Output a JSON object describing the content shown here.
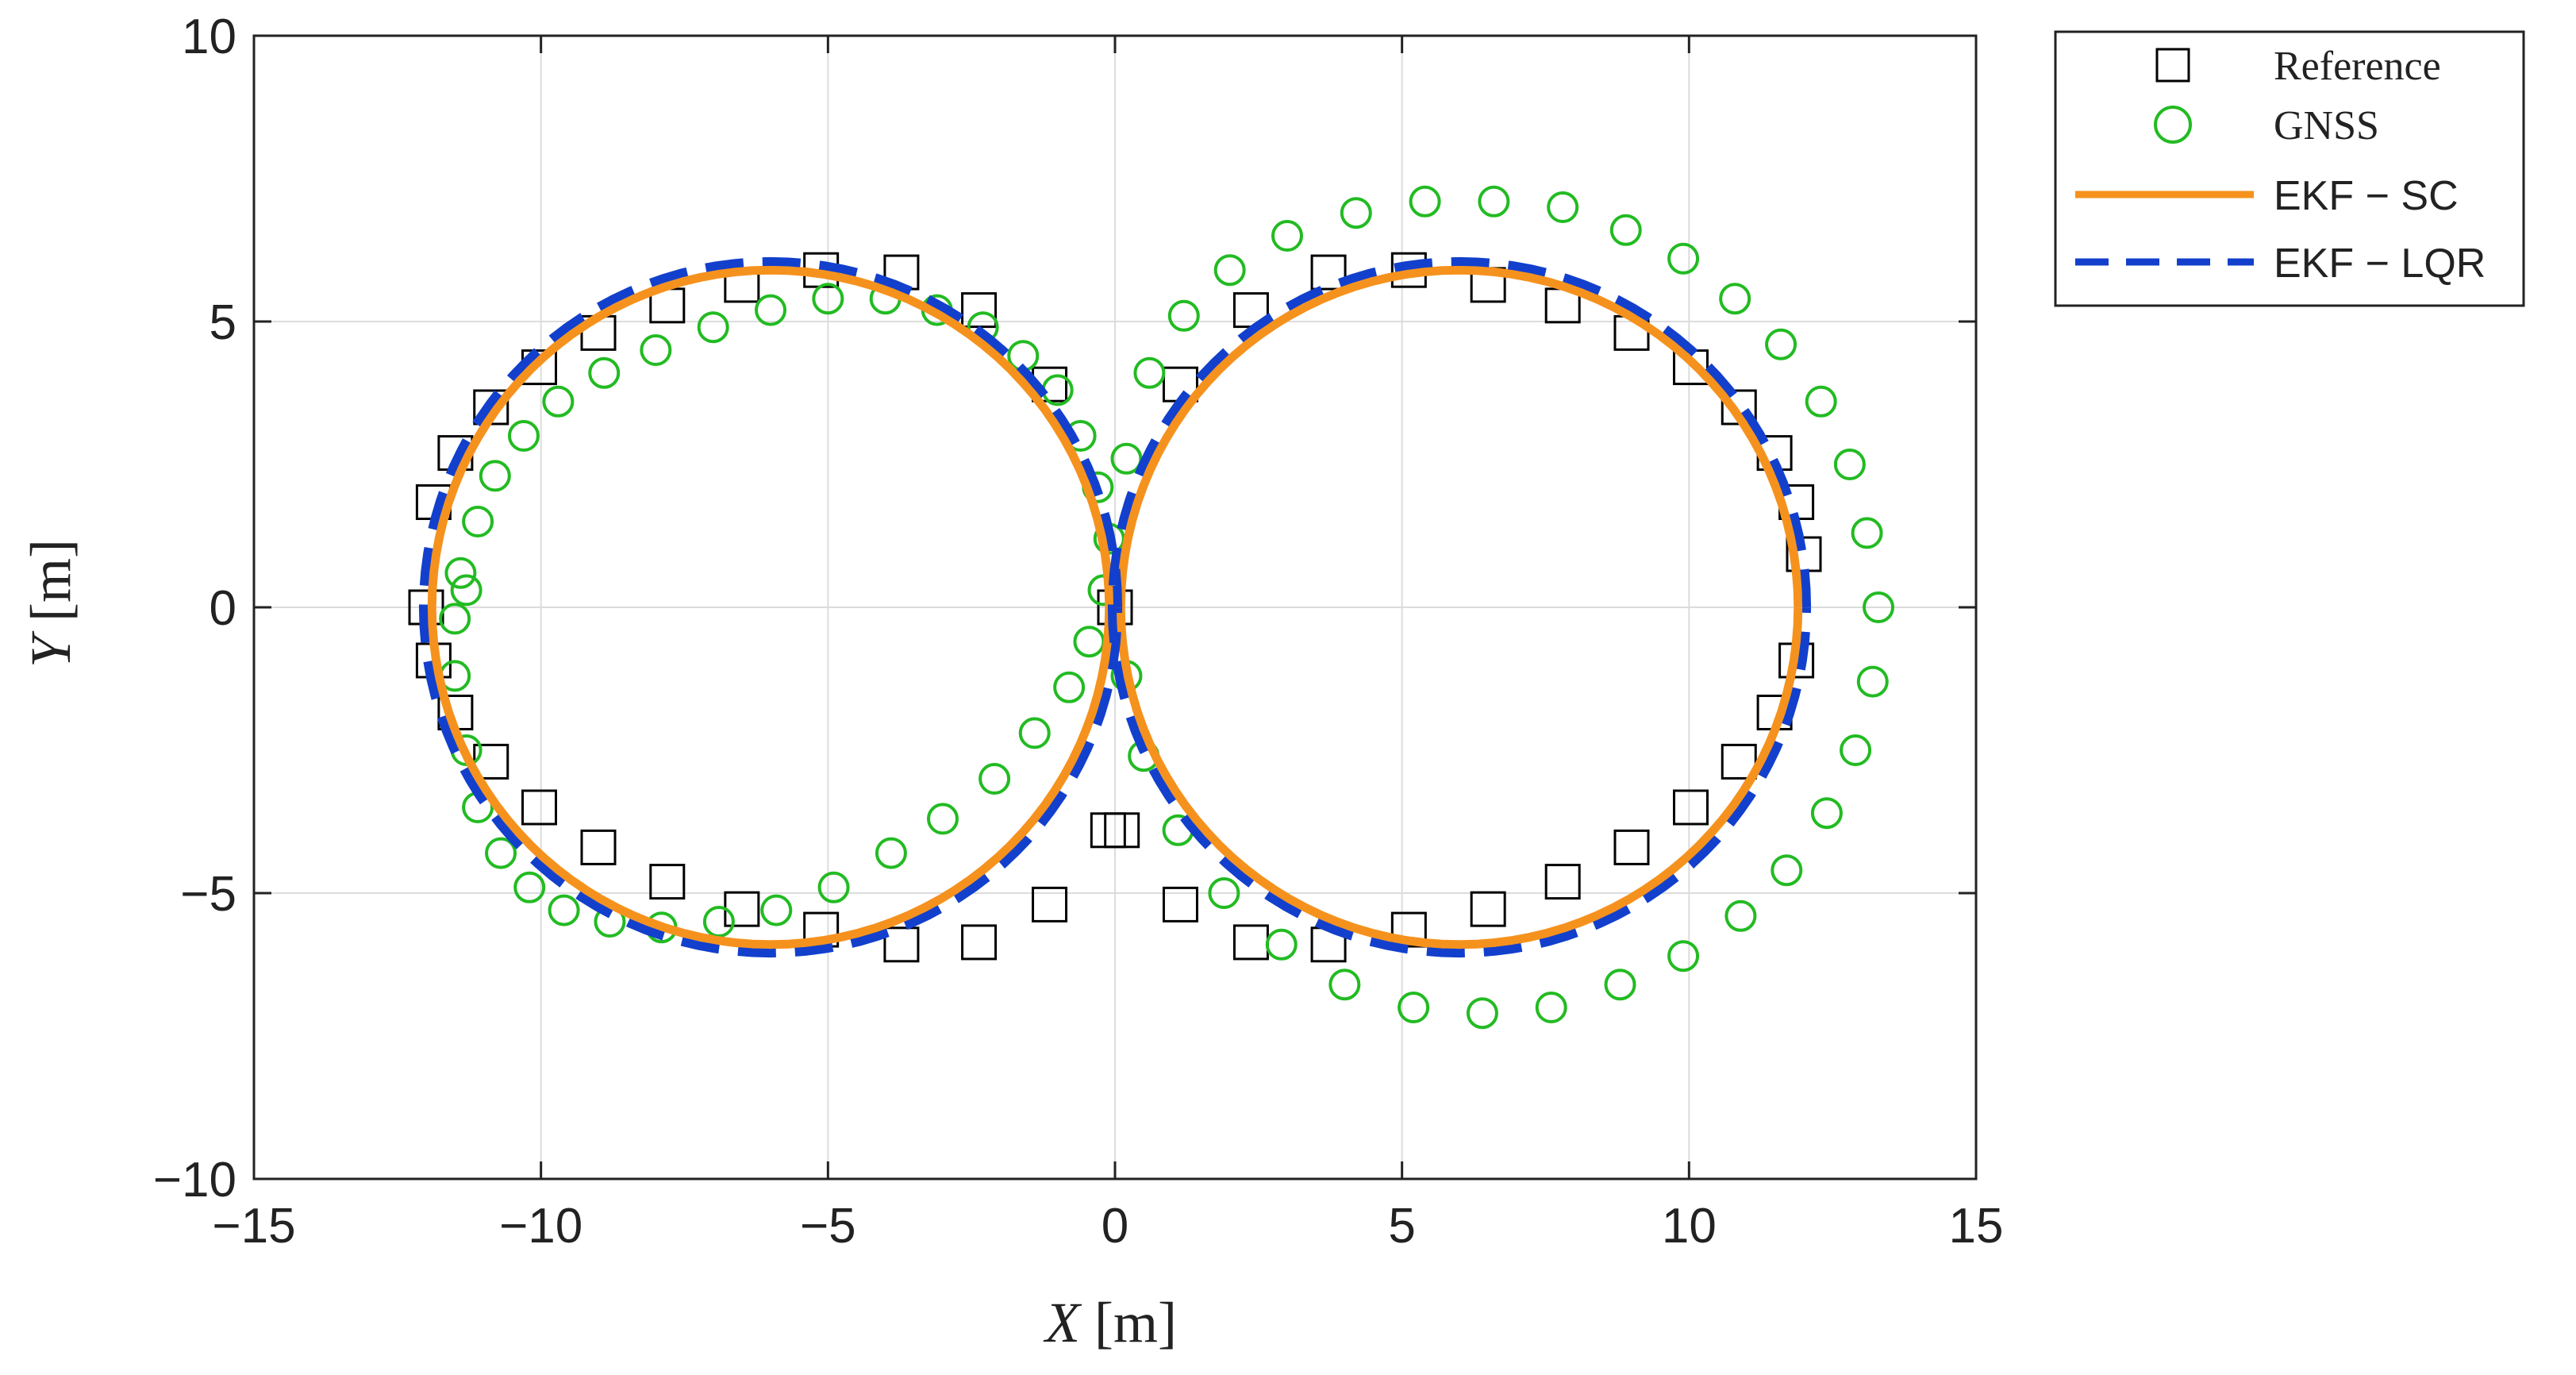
{
  "chart_data": {
    "type": "scatter",
    "xlabel": {
      "var": "X",
      "unit": "[m]"
    },
    "ylabel": {
      "var": "Y",
      "unit": "[m]"
    },
    "xlim": [
      -15,
      15
    ],
    "ylim": [
      -10,
      10
    ],
    "xticks": [
      "−15",
      "−10",
      "−5",
      "0",
      "5",
      "10",
      "15"
    ],
    "yticks": [
      "10",
      "5",
      "0",
      "−5",
      "−10"
    ],
    "grid": true,
    "legend_position": "outside-top-right",
    "series": [
      {
        "name": "Reference",
        "marker": "square",
        "color": "#000000",
        "x": [
          -12.0,
          -11.87,
          -11.49,
          -10.87,
          -10.03,
          -9.0,
          -7.8,
          -6.5,
          -5.12,
          -3.72,
          -2.37,
          -1.14,
          -0.12,
          0.0,
          1.14,
          2.37,
          3.72,
          5.12,
          6.5,
          7.8,
          9.0,
          10.03,
          10.87,
          11.49,
          11.87,
          12.0,
          11.87,
          11.49,
          10.87,
          10.03,
          9.0,
          7.8,
          6.5,
          5.12,
          3.72,
          2.37,
          1.14,
          0.12,
          0.0,
          -1.14,
          -2.37,
          -3.72,
          -5.12,
          -6.5,
          -7.8,
          -9.0,
          -10.03,
          -10.87,
          -11.49,
          -11.87
        ],
        "y": [
          0.0,
          -0.93,
          -1.84,
          -2.7,
          -3.5,
          -4.2,
          -4.8,
          -5.28,
          -5.64,
          -5.9,
          -5.86,
          -5.2,
          -3.9,
          0.0,
          3.9,
          5.2,
          5.86,
          5.9,
          5.64,
          5.28,
          4.8,
          4.2,
          3.5,
          2.7,
          1.84,
          0.93,
          -0.93,
          -1.84,
          -2.7,
          -3.5,
          -4.2,
          -4.8,
          -5.28,
          -5.64,
          -5.9,
          -5.86,
          -5.2,
          -3.9,
          0.0,
          3.9,
          5.2,
          5.86,
          5.9,
          5.64,
          5.28,
          4.8,
          4.2,
          3.5,
          2.7,
          1.84
        ]
      },
      {
        "name": "GNSS",
        "marker": "circle",
        "color": "#22BB22",
        "x": [
          -11.3,
          -11.5,
          -11.3,
          -11.1,
          -10.7,
          -10.2,
          -9.6,
          -8.8,
          -7.9,
          -6.9,
          -5.9,
          -4.9,
          -3.9,
          -3.0,
          -2.1,
          -1.4,
          -0.8,
          -0.45,
          -0.2,
          -0.1,
          -0.3,
          -0.6,
          -1.0,
          -1.6,
          -2.3,
          -3.1,
          -4.0,
          -5.0,
          -6.0,
          -7.0,
          -8.0,
          -8.9,
          -9.7,
          -10.3,
          -10.8,
          -11.1,
          -11.4,
          -11.5,
          0.2,
          0.6,
          1.2,
          2.0,
          3.0,
          4.2,
          5.4,
          6.6,
          7.8,
          8.9,
          9.9,
          10.8,
          11.6,
          12.3,
          12.8,
          13.1,
          13.3,
          13.2,
          12.9,
          12.4,
          11.7,
          10.9,
          9.9,
          8.8,
          7.6,
          6.4,
          5.2,
          4.0,
          2.9,
          1.9,
          1.1,
          0.5,
          0.2
        ],
        "y": [
          0.3,
          -1.2,
          -2.5,
          -3.5,
          -4.3,
          -4.9,
          -5.3,
          -5.5,
          -5.6,
          -5.5,
          -5.3,
          -4.9,
          -4.3,
          -3.7,
          -3.0,
          -2.2,
          -1.4,
          -0.6,
          0.3,
          1.2,
          2.1,
          3.0,
          3.8,
          4.4,
          4.9,
          5.2,
          5.4,
          5.4,
          5.2,
          4.9,
          4.5,
          4.1,
          3.6,
          3.0,
          2.3,
          1.5,
          0.6,
          -0.2,
          2.6,
          4.1,
          5.1,
          5.9,
          6.5,
          6.9,
          7.1,
          7.1,
          7.0,
          6.6,
          6.1,
          5.4,
          4.6,
          3.6,
          2.5,
          1.3,
          0.0,
          -1.3,
          -2.5,
          -3.6,
          -4.6,
          -5.4,
          -6.1,
          -6.6,
          -7.0,
          -7.1,
          -7.0,
          -6.6,
          -5.9,
          -5.0,
          -3.9,
          -2.6,
          -1.2
        ]
      },
      {
        "name": "EKF − SC",
        "line": "solid",
        "color": "#F5921E",
        "shape": "figure-eight",
        "centers_x": [
          -6,
          6
        ],
        "radius": 5.9
      },
      {
        "name": "EKF − LQR",
        "line": "dashed",
        "color": "#1240CC",
        "shape": "figure-eight",
        "centers_x": [
          -6,
          6
        ],
        "radius": 6.05
      }
    ],
    "legend": {
      "reference": "Reference",
      "gnss": "GNSS",
      "ekf_sc": "EKF − SC",
      "ekf_lqr": "EKF − LQR"
    }
  }
}
